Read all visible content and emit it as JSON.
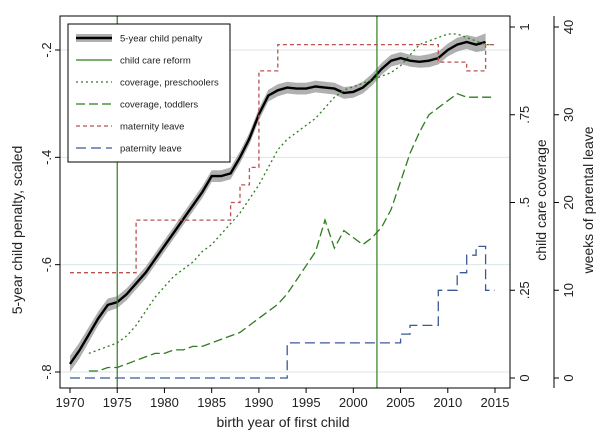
{
  "chart_data": {
    "type": "line",
    "xlabel": "birth year of first child",
    "ylabel_left": "5-year child penalty, scaled",
    "ylabel_right1": "child care coverage",
    "ylabel_right2": "weeks of parental leave",
    "xlim": [
      1970,
      2015
    ],
    "ylim_left": [
      -0.8,
      -0.2
    ],
    "ylim_right1": [
      0,
      1
    ],
    "ylim_right2": [
      0,
      40
    ],
    "x_ticks": [
      1970,
      1975,
      1980,
      1985,
      1990,
      1995,
      2000,
      2005,
      2010,
      2015
    ],
    "y_ticks_left": [
      {
        "v": -0.8,
        "label": "-.8"
      },
      {
        "v": -0.6,
        "label": "-.6"
      },
      {
        "v": -0.4,
        "label": "-.4"
      },
      {
        "v": -0.2,
        "label": "-.2"
      }
    ],
    "y_ticks_right1": [
      {
        "v": 0,
        "label": "0"
      },
      {
        "v": 0.25,
        "label": ".25"
      },
      {
        "v": 0.5,
        "label": ".5"
      },
      {
        "v": 0.75,
        "label": ".75"
      },
      {
        "v": 1,
        "label": "1"
      }
    ],
    "y_ticks_right2": [
      {
        "v": 0,
        "label": "0"
      },
      {
        "v": 10,
        "label": "10"
      },
      {
        "v": 20,
        "label": "20"
      },
      {
        "v": 30,
        "label": "30"
      },
      {
        "v": 40,
        "label": "40"
      }
    ],
    "grid": true,
    "legend_position": "top-left",
    "reform_lines": [
      1975,
      2002.5
    ],
    "series": [
      {
        "name": "5-year child penalty",
        "axis": "left",
        "style": "solid",
        "color": "#000000",
        "x": [
          1970,
          1971,
          1972,
          1973,
          1974,
          1975,
          1976,
          1977,
          1978,
          1979,
          1980,
          1981,
          1982,
          1983,
          1984,
          1985,
          1986,
          1987,
          1988,
          1989,
          1990,
          1991,
          1992,
          1993,
          1994,
          1995,
          1996,
          1997,
          1998,
          1999,
          2000,
          2001,
          2002,
          2003,
          2004,
          2005,
          2006,
          2007,
          2008,
          2009,
          2010,
          2011,
          2012,
          2013,
          2014
        ],
        "y": [
          -0.785,
          -0.76,
          -0.73,
          -0.7,
          -0.675,
          -0.67,
          -0.655,
          -0.635,
          -0.615,
          -0.59,
          -0.565,
          -0.54,
          -0.515,
          -0.49,
          -0.465,
          -0.435,
          -0.435,
          -0.43,
          -0.4,
          -0.365,
          -0.32,
          -0.285,
          -0.275,
          -0.27,
          -0.272,
          -0.272,
          -0.268,
          -0.27,
          -0.272,
          -0.28,
          -0.278,
          -0.27,
          -0.255,
          -0.235,
          -0.22,
          -0.215,
          -0.22,
          -0.222,
          -0.22,
          -0.215,
          -0.2,
          -0.19,
          -0.185,
          -0.19,
          -0.185
        ],
        "band": [
          0.015,
          0.015,
          0.014,
          0.013,
          0.012,
          0.011,
          0.011,
          0.011,
          0.011,
          0.011,
          0.011,
          0.011,
          0.011,
          0.011,
          0.011,
          0.011,
          0.011,
          0.011,
          0.011,
          0.011,
          0.011,
          0.011,
          0.011,
          0.011,
          0.011,
          0.011,
          0.011,
          0.011,
          0.011,
          0.011,
          0.011,
          0.011,
          0.011,
          0.011,
          0.011,
          0.011,
          0.011,
          0.011,
          0.012,
          0.012,
          0.012,
          0.013,
          0.013,
          0.014,
          0.016
        ]
      },
      {
        "name": "child care reform",
        "style": "vline",
        "color": "#2e7d1e"
      },
      {
        "name": "coverage, preschoolers",
        "axis": "right1",
        "style": "dotted",
        "color": "#2e7d1e",
        "x": [
          1972,
          1973,
          1974,
          1975,
          1976,
          1977,
          1978,
          1979,
          1980,
          1981,
          1982,
          1983,
          1984,
          1985,
          1986,
          1987,
          1988,
          1989,
          1990,
          1991,
          1992,
          1993,
          1994,
          1995,
          1996,
          1997,
          1998,
          1999,
          2000,
          2001,
          2002,
          2003,
          2004,
          2005,
          2006,
          2007,
          2008,
          2009,
          2010,
          2011,
          2012,
          2013,
          2014,
          2015
        ],
        "y": [
          0.07,
          0.08,
          0.09,
          0.1,
          0.12,
          0.15,
          0.19,
          0.23,
          0.26,
          0.29,
          0.31,
          0.33,
          0.36,
          0.38,
          0.41,
          0.44,
          0.47,
          0.51,
          0.55,
          0.6,
          0.65,
          0.68,
          0.7,
          0.72,
          0.74,
          0.77,
          0.8,
          0.82,
          0.83,
          0.84,
          0.85,
          0.86,
          0.87,
          0.89,
          0.92,
          0.95,
          0.96,
          0.97,
          0.98,
          0.98,
          0.97,
          0.96,
          0.95,
          0.95
        ]
      },
      {
        "name": "coverage, toddlers",
        "axis": "right1",
        "style": "dashed",
        "color": "#2e7d1e",
        "x": [
          1972,
          1973,
          1974,
          1975,
          1976,
          1977,
          1978,
          1979,
          1980,
          1981,
          1982,
          1983,
          1984,
          1985,
          1986,
          1987,
          1988,
          1989,
          1990,
          1991,
          1992,
          1993,
          1994,
          1995,
          1996,
          1997,
          1998,
          1999,
          2000,
          2001,
          2002,
          2003,
          2004,
          2005,
          2006,
          2007,
          2008,
          2009,
          2010,
          2011,
          2012,
          2013,
          2014,
          2015
        ],
        "y": [
          0.02,
          0.02,
          0.03,
          0.03,
          0.04,
          0.05,
          0.06,
          0.07,
          0.07,
          0.08,
          0.08,
          0.09,
          0.09,
          0.1,
          0.11,
          0.12,
          0.13,
          0.15,
          0.17,
          0.19,
          0.21,
          0.24,
          0.28,
          0.32,
          0.36,
          0.45,
          0.37,
          0.42,
          0.4,
          0.38,
          0.4,
          0.43,
          0.48,
          0.56,
          0.64,
          0.7,
          0.75,
          0.77,
          0.79,
          0.81,
          0.8,
          0.8,
          0.8,
          0.8
        ]
      },
      {
        "name": "maternity leave",
        "axis": "right2",
        "style": "dashed-short",
        "color": "#b85450",
        "steps": [
          [
            1970,
            12
          ],
          [
            1977,
            12
          ],
          [
            1977,
            18
          ],
          [
            1978,
            18
          ],
          [
            1978,
            18
          ],
          [
            1987,
            18
          ],
          [
            1987,
            20
          ],
          [
            1988,
            20
          ],
          [
            1988,
            22
          ],
          [
            1989,
            22
          ],
          [
            1989,
            24
          ],
          [
            1990,
            24
          ],
          [
            1990,
            35
          ],
          [
            1992,
            35
          ],
          [
            1992,
            38
          ],
          [
            1993,
            38
          ],
          [
            1993,
            38
          ],
          [
            2002,
            38
          ],
          [
            2002,
            38
          ],
          [
            2009,
            38
          ],
          [
            2009,
            36
          ],
          [
            2012,
            36
          ],
          [
            2012,
            35
          ],
          [
            2014,
            35
          ],
          [
            2014,
            38
          ],
          [
            2015,
            38
          ]
        ]
      },
      {
        "name": "paternity leave",
        "axis": "right2",
        "style": "dashed-long",
        "color": "#3b5998",
        "steps": [
          [
            1970,
            0
          ],
          [
            1993,
            0
          ],
          [
            1993,
            4
          ],
          [
            2005,
            4
          ],
          [
            2005,
            5
          ],
          [
            2006,
            5
          ],
          [
            2006,
            6
          ],
          [
            2009,
            6
          ],
          [
            2009,
            10
          ],
          [
            2011,
            10
          ],
          [
            2011,
            12
          ],
          [
            2012,
            12
          ],
          [
            2012,
            14
          ],
          [
            2013,
            14
          ],
          [
            2013,
            15
          ],
          [
            2014,
            15
          ],
          [
            2014,
            10
          ],
          [
            2015,
            10
          ]
        ]
      }
    ]
  }
}
